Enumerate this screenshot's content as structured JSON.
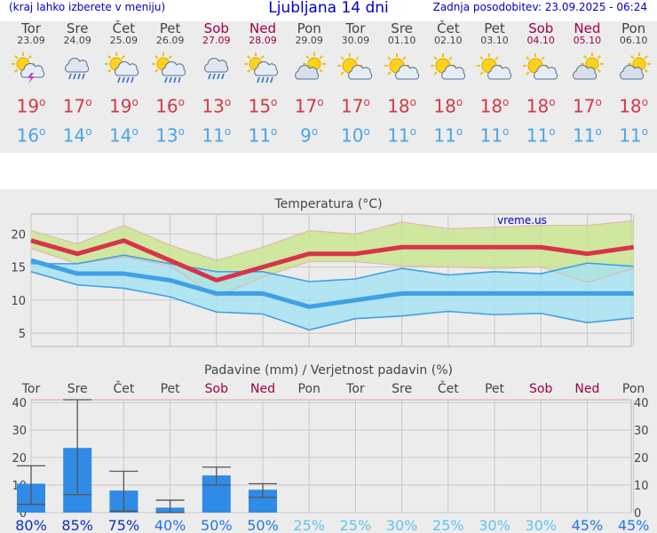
{
  "header": {
    "menu_hint": "(kraj lahko izberete v meniju)",
    "title": "Ljubljana 14 dni",
    "updated": "Zadnja posodobitev: 23.09.2025 - 06:24"
  },
  "days": [
    {
      "name": "Tor",
      "date": "23.09",
      "weekend": false,
      "icon": "sun-cloud-thunder-icon",
      "max": "19",
      "min": "16"
    },
    {
      "name": "Sre",
      "date": "24.09",
      "weekend": false,
      "icon": "cloud-rain-icon",
      "max": "17",
      "min": "14"
    },
    {
      "name": "Čet",
      "date": "25.09",
      "weekend": false,
      "icon": "sun-cloud-rain-icon",
      "max": "19",
      "min": "14"
    },
    {
      "name": "Pet",
      "date": "26.09",
      "weekend": false,
      "icon": "sun-cloud-rain-icon",
      "max": "16",
      "min": "13"
    },
    {
      "name": "Sob",
      "date": "27.09",
      "weekend": true,
      "icon": "cloud-rain-icon",
      "max": "13",
      "min": "11"
    },
    {
      "name": "Ned",
      "date": "28.09",
      "weekend": true,
      "icon": "sun-cloud-rain-icon",
      "max": "15",
      "min": "11"
    },
    {
      "name": "Pon",
      "date": "29.09",
      "weekend": false,
      "icon": "cloud-sun-icon",
      "max": "17",
      "min": "9"
    },
    {
      "name": "Tor",
      "date": "30.09",
      "weekend": false,
      "icon": "sun-cloud-icon",
      "max": "17",
      "min": "10"
    },
    {
      "name": "Sre",
      "date": "01.10",
      "weekend": false,
      "icon": "sun-cloud-icon",
      "max": "18",
      "min": "11"
    },
    {
      "name": "Čet",
      "date": "02.10",
      "weekend": false,
      "icon": "sun-cloud-icon",
      "max": "18",
      "min": "11"
    },
    {
      "name": "Pet",
      "date": "03.10",
      "weekend": false,
      "icon": "sun-cloud-icon",
      "max": "18",
      "min": "11"
    },
    {
      "name": "Sob",
      "date": "04.10",
      "weekend": true,
      "icon": "sun-cloud-icon",
      "max": "18",
      "min": "11"
    },
    {
      "name": "Ned",
      "date": "05.10",
      "weekend": true,
      "icon": "cloud-sun-icon",
      "max": "17",
      "min": "11"
    },
    {
      "name": "Pon",
      "date": "06.10",
      "weekend": false,
      "icon": "cloud-sun-icon",
      "max": "18",
      "min": "11"
    }
  ],
  "degree_symbol": "o",
  "chart_data": [
    {
      "type": "line",
      "title": "Temperatura (°C)",
      "watermark": "vreme.us",
      "categories": [
        "Tor",
        "Sre",
        "Čet",
        "Pet",
        "Sob",
        "Ned",
        "Pon",
        "Tor",
        "Sre",
        "Čet",
        "Pet",
        "Sob",
        "Ned",
        "Pon"
      ],
      "ylim": [
        3,
        23
      ],
      "yticks": [
        5,
        10,
        15,
        20
      ],
      "grid": true,
      "series": [
        {
          "values": [
            19,
            17,
            19,
            16,
            13,
            15,
            17,
            17,
            18,
            18,
            18,
            18,
            17,
            18
          ],
          "color": "#d8334a"
        },
        {
          "values": [
            16,
            14,
            14,
            13,
            11,
            11,
            9,
            10,
            11,
            11,
            11,
            11,
            11,
            11
          ],
          "color": "#3ea0e6"
        }
      ],
      "max_band": {
        "upper": [
          20.5,
          18.5,
          21.3,
          18.3,
          16,
          18,
          20.5,
          20,
          21.8,
          20.8,
          21,
          21.3,
          21.3,
          22
        ],
        "lower": [
          17.8,
          15.5,
          16.5,
          15.2,
          10.5,
          13.5,
          15.8,
          15.8,
          15.2,
          15,
          14.8,
          15,
          12.7,
          14.8
        ],
        "color": "#c8e68c"
      },
      "min_band": {
        "upper": [
          15.5,
          15.5,
          16.8,
          15.5,
          14.3,
          14.3,
          12.8,
          13.2,
          14.8,
          13.8,
          14.3,
          14,
          15.6,
          15.1
        ],
        "lower": [
          14.3,
          12.3,
          11.8,
          10.5,
          8.2,
          7.9,
          5.5,
          7.2,
          7.6,
          8.3,
          7.8,
          8,
          6.6,
          7.3
        ],
        "color": "#a4e4f2"
      }
    },
    {
      "type": "bar",
      "title": "Padavine (mm) / Verjetnost padavin (%)",
      "categories": [
        "Tor",
        "Sre",
        "Čet",
        "Pet",
        "Sob",
        "Ned",
        "Pon",
        "Tor",
        "Sre",
        "Čet",
        "Pet",
        "Sob",
        "Ned",
        "Pon"
      ],
      "ylim": [
        0,
        41
      ],
      "yticks": [
        0,
        10,
        20,
        30,
        40
      ],
      "values": [
        10.5,
        23.5,
        8,
        1.8,
        13.5,
        8.3,
        0,
        0,
        0,
        0,
        0,
        0,
        0,
        0
      ],
      "error_bars": [
        [
          3,
          17
        ],
        [
          6.5,
          41
        ],
        [
          0.5,
          15
        ],
        [
          0,
          4.5
        ],
        [
          10,
          16.5
        ],
        [
          5.5,
          10.5
        ],
        null,
        null,
        null,
        null,
        null,
        null,
        null,
        null
      ],
      "probability": [
        "80%",
        "85%",
        "75%",
        "40%",
        "50%",
        "50%",
        "25%",
        "25%",
        "30%",
        "25%",
        "30%",
        "30%",
        "45%",
        "45%"
      ],
      "bar_color": "#2f8be6"
    }
  ]
}
